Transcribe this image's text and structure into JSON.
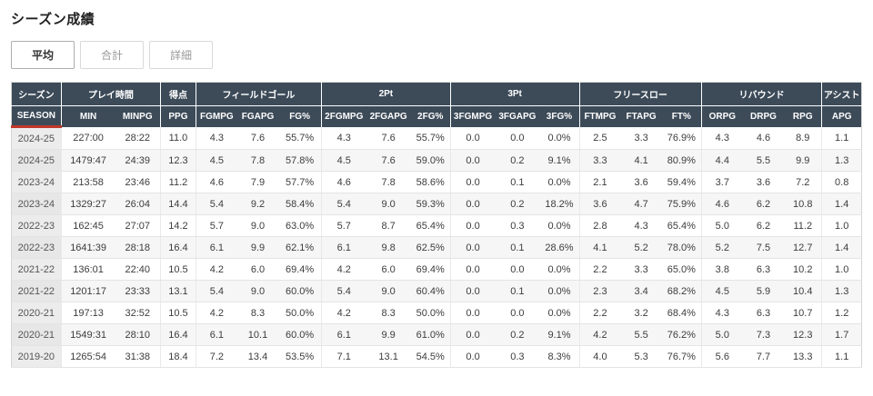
{
  "page": {
    "title": "シーズン成績"
  },
  "tabs": [
    {
      "label": "平均",
      "active": true
    },
    {
      "label": "合計",
      "active": false
    },
    {
      "label": "詳細",
      "active": false
    }
  ],
  "accent_colors": {
    "header_bg": "#3d4b59",
    "season_underline": "#c0392b"
  },
  "table": {
    "groups": [
      {
        "label": "シーズン",
        "span": 1
      },
      {
        "label": "プレイ時間",
        "span": 2
      },
      {
        "label": "得点",
        "span": 1
      },
      {
        "label": "フィールドゴール",
        "span": 3
      },
      {
        "label": "2Pt",
        "span": 3
      },
      {
        "label": "3Pt",
        "span": 3
      },
      {
        "label": "フリースロー",
        "span": 3
      },
      {
        "label": "リバウンド",
        "span": 3
      },
      {
        "label": "アシスト",
        "span": 1
      }
    ],
    "columns": [
      "SEASON",
      "MIN",
      "MINPG",
      "PPG",
      "FGMPG",
      "FGAPG",
      "FG%",
      "2FGMPG",
      "2FGAPG",
      "2FG%",
      "3FGMPG",
      "3FGAPG",
      "3FG%",
      "FTMPG",
      "FTAPG",
      "FT%",
      "ORPG",
      "DRPG",
      "RPG",
      "APG"
    ],
    "rows": [
      [
        "2024-25",
        "227:00",
        "28:22",
        "11.0",
        "4.3",
        "7.6",
        "55.7%",
        "4.3",
        "7.6",
        "55.7%",
        "0.0",
        "0.0",
        "0.0%",
        "2.5",
        "3.3",
        "76.9%",
        "4.3",
        "4.6",
        "8.9",
        "1.1"
      ],
      [
        "2024-25",
        "1479:47",
        "24:39",
        "12.3",
        "4.5",
        "7.8",
        "57.8%",
        "4.5",
        "7.6",
        "59.0%",
        "0.0",
        "0.2",
        "9.1%",
        "3.3",
        "4.1",
        "80.9%",
        "4.4",
        "5.5",
        "9.9",
        "1.3"
      ],
      [
        "2023-24",
        "213:58",
        "23:46",
        "11.2",
        "4.6",
        "7.9",
        "57.7%",
        "4.6",
        "7.8",
        "58.6%",
        "0.0",
        "0.1",
        "0.0%",
        "2.1",
        "3.6",
        "59.4%",
        "3.7",
        "3.6",
        "7.2",
        "0.8"
      ],
      [
        "2023-24",
        "1329:27",
        "26:04",
        "14.4",
        "5.4",
        "9.2",
        "58.4%",
        "5.4",
        "9.0",
        "59.3%",
        "0.0",
        "0.2",
        "18.2%",
        "3.6",
        "4.7",
        "75.9%",
        "4.6",
        "6.2",
        "10.8",
        "1.4"
      ],
      [
        "2022-23",
        "162:45",
        "27:07",
        "14.2",
        "5.7",
        "9.0",
        "63.0%",
        "5.7",
        "8.7",
        "65.4%",
        "0.0",
        "0.3",
        "0.0%",
        "2.8",
        "4.3",
        "65.4%",
        "5.0",
        "6.2",
        "11.2",
        "1.0"
      ],
      [
        "2022-23",
        "1641:39",
        "28:18",
        "16.4",
        "6.1",
        "9.9",
        "62.1%",
        "6.1",
        "9.8",
        "62.5%",
        "0.0",
        "0.1",
        "28.6%",
        "4.1",
        "5.2",
        "78.0%",
        "5.2",
        "7.5",
        "12.7",
        "1.4"
      ],
      [
        "2021-22",
        "136:01",
        "22:40",
        "10.5",
        "4.2",
        "6.0",
        "69.4%",
        "4.2",
        "6.0",
        "69.4%",
        "0.0",
        "0.0",
        "0.0%",
        "2.2",
        "3.3",
        "65.0%",
        "3.8",
        "6.3",
        "10.2",
        "1.0"
      ],
      [
        "2021-22",
        "1201:17",
        "23:33",
        "13.1",
        "5.4",
        "9.0",
        "60.0%",
        "5.4",
        "9.0",
        "60.4%",
        "0.0",
        "0.1",
        "0.0%",
        "2.3",
        "3.4",
        "68.2%",
        "4.5",
        "5.9",
        "10.4",
        "1.3"
      ],
      [
        "2020-21",
        "197:13",
        "32:52",
        "10.5",
        "4.2",
        "8.3",
        "50.0%",
        "4.2",
        "8.3",
        "50.0%",
        "0.0",
        "0.0",
        "0.0%",
        "2.2",
        "3.2",
        "68.4%",
        "4.3",
        "6.3",
        "10.7",
        "1.2"
      ],
      [
        "2020-21",
        "1549:31",
        "28:10",
        "16.4",
        "6.1",
        "10.1",
        "60.0%",
        "6.1",
        "9.9",
        "61.0%",
        "0.0",
        "0.2",
        "9.1%",
        "4.2",
        "5.5",
        "76.2%",
        "5.0",
        "7.3",
        "12.3",
        "1.7"
      ],
      [
        "2019-20",
        "1265:54",
        "31:38",
        "18.4",
        "7.2",
        "13.4",
        "53.5%",
        "7.1",
        "13.1",
        "54.5%",
        "0.0",
        "0.3",
        "8.3%",
        "4.0",
        "5.3",
        "76.7%",
        "5.6",
        "7.7",
        "13.3",
        "1.1"
      ]
    ]
  }
}
